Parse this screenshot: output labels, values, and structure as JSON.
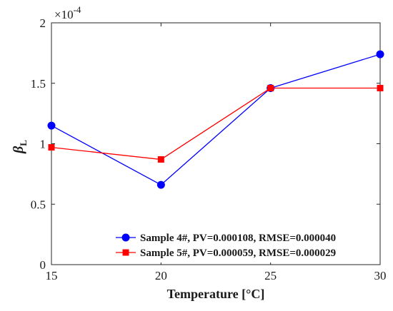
{
  "chart_data": {
    "type": "line",
    "x": [
      15,
      20,
      25,
      30
    ],
    "xlabel": "Temperature [°C]",
    "ylabel": "β",
    "ylabel_subscript": "L",
    "y_multiplier_base": "×10",
    "y_multiplier_exp": "-4",
    "xlim": [
      15,
      30
    ],
    "ylim": [
      0,
      2
    ],
    "xticks": [
      "15",
      "20",
      "25",
      "30"
    ],
    "yticks": [
      "0",
      "0.5",
      "1",
      "1.5",
      "2"
    ],
    "grid": false,
    "legend_position": "bottom-right",
    "series": [
      {
        "name": "Sample 4#, PV=0.000108, RMSE=0.000040",
        "values": [
          1.15,
          0.66,
          1.46,
          1.74
        ],
        "color": "#0000ff",
        "marker": "circle"
      },
      {
        "name": "Sample 5#, PV=0.000059, RMSE=0.000029",
        "values": [
          0.97,
          0.87,
          1.46,
          1.46
        ],
        "color": "#ff0000",
        "marker": "square"
      }
    ]
  }
}
